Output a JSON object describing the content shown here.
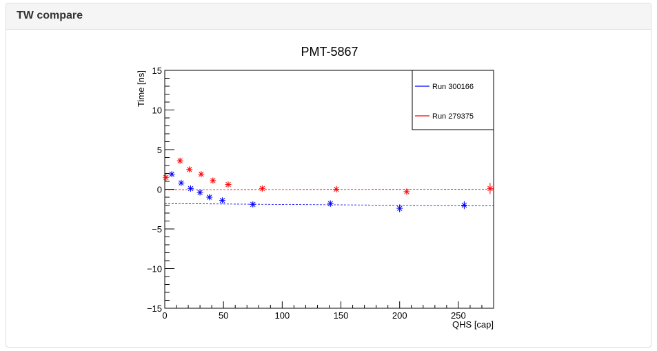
{
  "panel": {
    "title": "TW compare"
  },
  "chart_data": {
    "type": "scatter",
    "title": "PMT-5867",
    "xlabel": "QHS [cap]",
    "ylabel": "Time [ns]",
    "xlim": [
      0,
      280
    ],
    "ylim": [
      -15,
      15
    ],
    "x_ticks": [
      0,
      50,
      100,
      150,
      200,
      250
    ],
    "y_ticks": [
      -15,
      -10,
      -5,
      0,
      5,
      10,
      15
    ],
    "grid": false,
    "legend": "top-right",
    "series": [
      {
        "name": "Run 300166",
        "color": "#0000ff",
        "points": [
          {
            "x": 6,
            "y": 1.9,
            "err": 0.3
          },
          {
            "x": 14,
            "y": 0.8,
            "err": 0.3
          },
          {
            "x": 22,
            "y": 0.1,
            "err": 0.3
          },
          {
            "x": 30,
            "y": -0.4,
            "err": 0.3
          },
          {
            "x": 38,
            "y": -1.0,
            "err": 0.3
          },
          {
            "x": 49,
            "y": -1.4,
            "err": 0.3
          },
          {
            "x": 75,
            "y": -1.9,
            "err": 0.3
          },
          {
            "x": 141,
            "y": -1.8,
            "err": 0.4
          },
          {
            "x": 200,
            "y": -2.4,
            "err": 0.5
          },
          {
            "x": 255,
            "y": -2.0,
            "err": 0.5
          }
        ],
        "fit": [
          [
            0,
            -1.8
          ],
          [
            280,
            -2.1
          ]
        ]
      },
      {
        "name": "Run 279375",
        "color": "#ff0000",
        "points": [
          {
            "x": 1,
            "y": 1.5,
            "err": 0.4
          },
          {
            "x": 13,
            "y": 3.6,
            "err": 0.3
          },
          {
            "x": 21,
            "y": 2.5,
            "err": 0.3
          },
          {
            "x": 31,
            "y": 1.9,
            "err": 0.3
          },
          {
            "x": 41,
            "y": 1.1,
            "err": 0.3
          },
          {
            "x": 54,
            "y": 0.6,
            "err": 0.3
          },
          {
            "x": 83,
            "y": 0.1,
            "err": 0.3
          },
          {
            "x": 146,
            "y": 0.0,
            "err": 0.4
          },
          {
            "x": 206,
            "y": -0.3,
            "err": 0.4
          },
          {
            "x": 277,
            "y": 0.1,
            "err": 0.7
          }
        ],
        "fit": [
          [
            0,
            -0.05
          ],
          [
            280,
            0.0
          ]
        ]
      }
    ]
  }
}
